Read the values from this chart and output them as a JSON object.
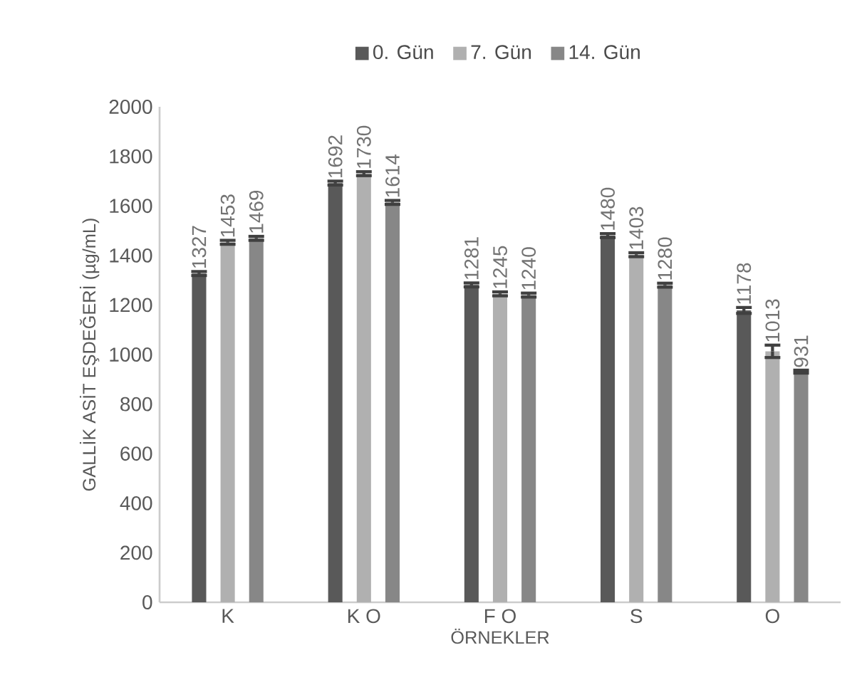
{
  "chart_data": {
    "type": "bar",
    "xlabel": "ÖRNEKLER",
    "ylabel": "GALLİK ASİT EŞDEĞERİ  (µg/mL)",
    "categories": [
      "K",
      "K O",
      "F O",
      "S",
      "O"
    ],
    "series": [
      {
        "name": "0. Gün",
        "color": "#595959",
        "values": [
          1327,
          1692,
          1281,
          1480,
          1178
        ],
        "errors": [
          8,
          8,
          8,
          8,
          12
        ]
      },
      {
        "name": "7. Gün",
        "color": "#b0b0b0",
        "values": [
          1453,
          1730,
          1245,
          1403,
          1013
        ],
        "errors": [
          8,
          8,
          8,
          8,
          25
        ]
      },
      {
        "name": "14. Gün",
        "color": "#878787",
        "values": [
          1469,
          1614,
          1240,
          1280,
          931
        ],
        "errors": [
          8,
          8,
          8,
          8,
          6
        ]
      }
    ],
    "ylim": [
      0,
      2000
    ],
    "yticks": [
      0,
      200,
      400,
      600,
      800,
      1000,
      1200,
      1400,
      1600,
      1800,
      2000
    ],
    "data_labels": true,
    "legend": "top",
    "grid": false
  }
}
